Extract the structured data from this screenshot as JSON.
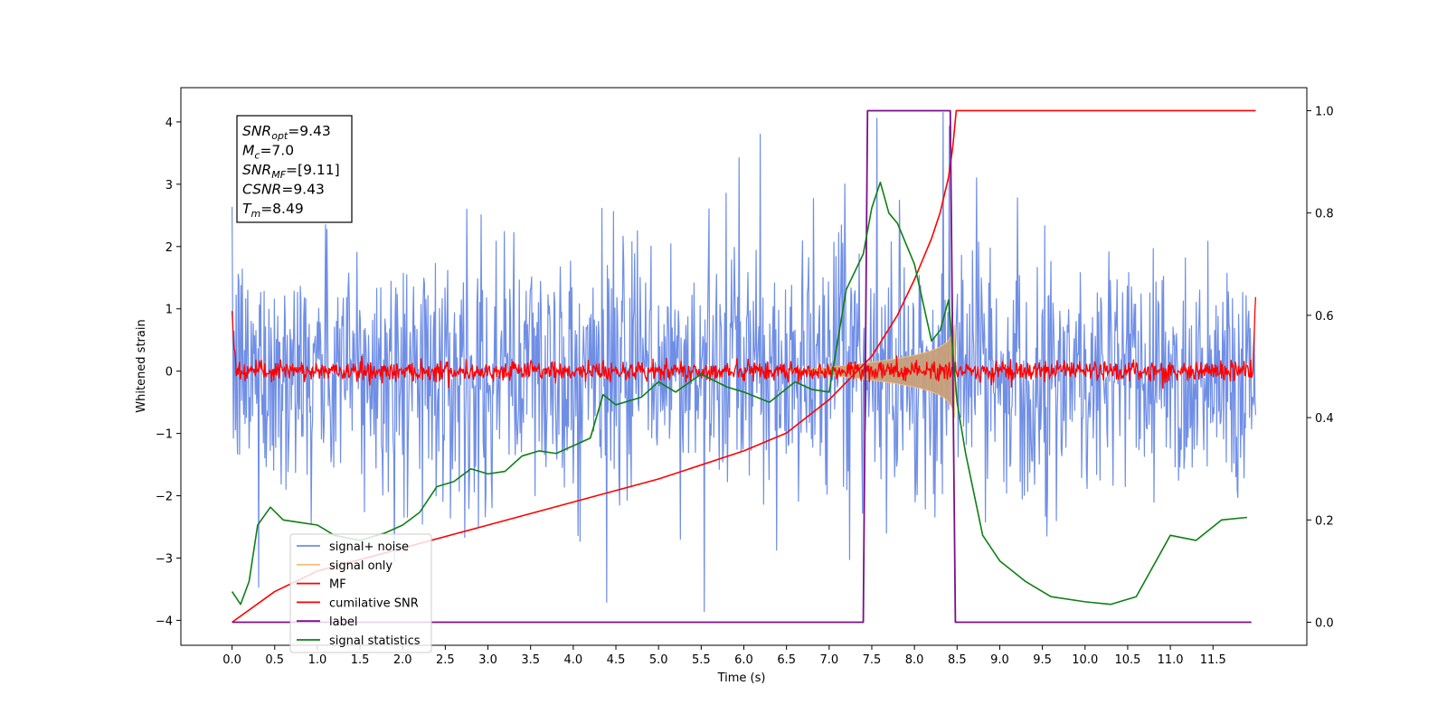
{
  "chart_data": {
    "type": "line",
    "xlabel": "Time (s)",
    "ylabel": "Whitened strain",
    "xlim": [
      -0.6,
      12.6
    ],
    "ylim": [
      -4.4,
      4.55
    ],
    "y2lim": [
      -0.045,
      1.045
    ],
    "xticks": [
      "0.0",
      "0.5",
      "1.0",
      "1.5",
      "2.0",
      "2.5",
      "3.0",
      "3.5",
      "4.0",
      "4.5",
      "5.0",
      "5.5",
      "6.0",
      "6.5",
      "7.0",
      "7.5",
      "8.0",
      "8.5",
      "9.0",
      "9.5",
      "10.0",
      "10.5",
      "11.0",
      "11.5"
    ],
    "xtick_values": [
      0,
      0.5,
      1,
      1.5,
      2,
      2.5,
      3,
      3.5,
      4,
      4.5,
      5,
      5.5,
      6,
      6.5,
      7,
      7.5,
      8,
      8.5,
      9,
      9.5,
      10,
      10.5,
      11,
      11.5
    ],
    "yticks": [
      "4",
      "3",
      "2",
      "1",
      "0",
      "−1",
      "−2",
      "−3",
      "−4"
    ],
    "ytick_values": [
      4,
      3,
      2,
      1,
      0,
      -1,
      -2,
      -3,
      -4
    ],
    "y2ticks": [
      "1.0",
      "0.8",
      "0.6",
      "0.4",
      "0.2",
      "0.0"
    ],
    "y2tick_values": [
      1.0,
      0.8,
      0.6,
      0.4,
      0.2,
      0.0
    ],
    "legend_position": "lower-left",
    "colors": {
      "noise": "#6f8ee6",
      "signal": "#f4c27a",
      "signal_fill": "#c8a07a",
      "mf": "#ff0000",
      "csnr": "#ff0000",
      "label": "#7b0f8a",
      "stats": "#0f7f14"
    },
    "series": [
      {
        "name": "signal+ noise",
        "axis": "left",
        "amplitude_typical": 1.6,
        "amplitude_max": 4.15,
        "x_range": [
          0.0,
          12.0
        ]
      },
      {
        "name": "signal only",
        "axis": "left",
        "x_start": 6.5,
        "x_peak": 8.47,
        "peak_amplitude": 0.75
      },
      {
        "name": "MF",
        "axis": "left",
        "baseline": 0.0,
        "noise_amplitude": 0.15
      },
      {
        "name": "cumilative SNR",
        "axis": "right",
        "x": [
          0.0,
          0.5,
          1.0,
          2.0,
          3.0,
          4.0,
          5.0,
          6.0,
          6.5,
          7.0,
          7.5,
          7.8,
          8.0,
          8.2,
          8.3,
          8.4,
          8.45,
          8.49,
          12.0
        ],
        "values": [
          0.0,
          0.06,
          0.1,
          0.145,
          0.19,
          0.235,
          0.28,
          0.335,
          0.37,
          0.435,
          0.52,
          0.6,
          0.67,
          0.75,
          0.8,
          0.87,
          0.93,
          1.0,
          1.0
        ]
      },
      {
        "name": "label",
        "axis": "right",
        "x": [
          0.0,
          7.4,
          7.45,
          8.42,
          8.48,
          11.95
        ],
        "values": [
          0.0,
          0.0,
          1.0,
          1.0,
          0.0,
          0.0
        ]
      },
      {
        "name": "signal statistics",
        "axis": "right",
        "x": [
          0.0,
          0.1,
          0.2,
          0.3,
          0.45,
          0.6,
          0.8,
          1.0,
          1.2,
          1.5,
          1.8,
          2.0,
          2.2,
          2.4,
          2.6,
          2.8,
          3.0,
          3.2,
          3.4,
          3.6,
          3.8,
          4.0,
          4.2,
          4.35,
          4.5,
          4.8,
          5.0,
          5.2,
          5.5,
          5.8,
          6.0,
          6.3,
          6.6,
          6.8,
          7.0,
          7.2,
          7.4,
          7.5,
          7.6,
          7.7,
          7.8,
          8.0,
          8.2,
          8.3,
          8.4,
          8.5,
          8.6,
          8.8,
          9.0,
          9.3,
          9.6,
          10.0,
          10.3,
          10.6,
          11.0,
          11.3,
          11.6,
          11.9
        ],
        "values": [
          0.06,
          0.035,
          0.08,
          0.19,
          0.225,
          0.2,
          0.195,
          0.19,
          0.17,
          0.16,
          0.175,
          0.19,
          0.215,
          0.265,
          0.275,
          0.3,
          0.29,
          0.295,
          0.325,
          0.335,
          0.33,
          0.345,
          0.36,
          0.445,
          0.425,
          0.44,
          0.47,
          0.45,
          0.485,
          0.46,
          0.45,
          0.43,
          0.47,
          0.455,
          0.45,
          0.65,
          0.72,
          0.81,
          0.86,
          0.8,
          0.78,
          0.7,
          0.55,
          0.57,
          0.63,
          0.43,
          0.33,
          0.17,
          0.12,
          0.08,
          0.05,
          0.04,
          0.035,
          0.05,
          0.17,
          0.16,
          0.2,
          0.205
        ]
      }
    ],
    "annotation": [
      {
        "main": "SNR",
        "sub": "opt",
        "rest": "=9.43"
      },
      {
        "main": "M",
        "sub": "c",
        "rest": "=7.0"
      },
      {
        "main": "SNR",
        "sub": "MF",
        "rest": "=[9.11]"
      },
      {
        "main": "CSNR",
        "sub": "",
        "rest": "=9.43"
      },
      {
        "main": "T",
        "sub": "m",
        "rest": "=8.49"
      }
    ]
  }
}
